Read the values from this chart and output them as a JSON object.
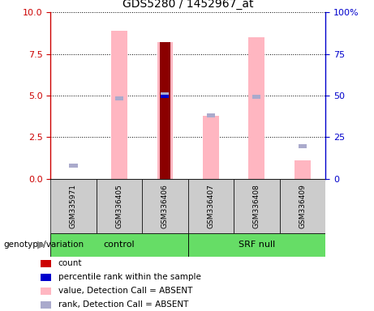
{
  "title": "GDS5280 / 1452967_at",
  "samples": [
    "GSM335971",
    "GSM336405",
    "GSM336406",
    "GSM336407",
    "GSM336408",
    "GSM336409"
  ],
  "pink_bar_values": [
    0.0,
    8.9,
    8.2,
    3.8,
    8.5,
    1.1
  ],
  "light_blue_values": [
    0.65,
    4.7,
    4.95,
    3.7,
    4.8,
    1.85
  ],
  "dark_red_bar": [
    null,
    null,
    8.2,
    null,
    null,
    null
  ],
  "blue_square": [
    null,
    null,
    4.85,
    null,
    null,
    null
  ],
  "ylim_left": [
    0,
    10
  ],
  "ylim_right": [
    0,
    100
  ],
  "yticks_left": [
    0,
    2.5,
    5,
    7.5,
    10
  ],
  "yticks_right": [
    0,
    25,
    50,
    75,
    100
  ],
  "left_axis_color": "#CC0000",
  "right_axis_color": "#0000CC",
  "pink_bar_color": "#FFB6C1",
  "light_blue_color": "#AAAACC",
  "dark_red_color": "#8B0000",
  "blue_square_color": "#0000CD",
  "group_bar_color": "#66DD66",
  "legend_items": [
    {
      "label": "count",
      "color": "#CC0000"
    },
    {
      "label": "percentile rank within the sample",
      "color": "#0000CD"
    },
    {
      "label": "value, Detection Call = ABSENT",
      "color": "#FFB6C1"
    },
    {
      "label": "rank, Detection Call = ABSENT",
      "color": "#AAAACC"
    }
  ],
  "genotype_label": "genotype/variation"
}
